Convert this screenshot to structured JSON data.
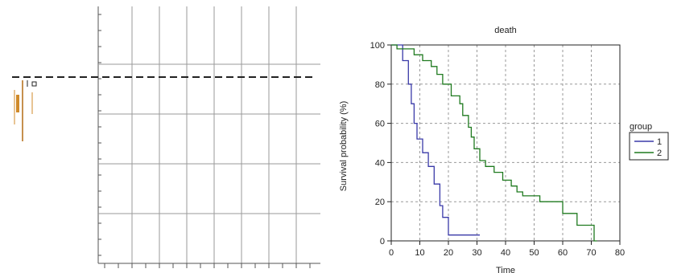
{
  "left_panel": {
    "grid_color": "#9a9a9a",
    "dashed_color": "#222222",
    "fragment_color": "#d08a2a"
  },
  "chart_data": {
    "type": "line",
    "title": "death",
    "xlabel": "Time",
    "ylabel": "Survival probability (%)",
    "xlim": [
      0,
      80
    ],
    "ylim": [
      0,
      100
    ],
    "x_ticks": [
      "0",
      "10",
      "20",
      "30",
      "40",
      "50",
      "60",
      "70",
      "80"
    ],
    "y_ticks": [
      "0",
      "20",
      "40",
      "60",
      "80",
      "100"
    ],
    "grid": true,
    "legend_title": "group",
    "legend_position": "right",
    "series": [
      {
        "name": "1",
        "color": "#3a3aa8",
        "points": [
          [
            0,
            100
          ],
          [
            4,
            100
          ],
          [
            4,
            92
          ],
          [
            6,
            92
          ],
          [
            6,
            80
          ],
          [
            7,
            80
          ],
          [
            7,
            70
          ],
          [
            8,
            70
          ],
          [
            8,
            60
          ],
          [
            9,
            60
          ],
          [
            9,
            52
          ],
          [
            11,
            52
          ],
          [
            11,
            45
          ],
          [
            13,
            45
          ],
          [
            13,
            38
          ],
          [
            15,
            38
          ],
          [
            15,
            29
          ],
          [
            17,
            29
          ],
          [
            17,
            18
          ],
          [
            18,
            18
          ],
          [
            18,
            12
          ],
          [
            20,
            12
          ],
          [
            20,
            3
          ],
          [
            31,
            3
          ]
        ]
      },
      {
        "name": "2",
        "color": "#1f7a1f",
        "points": [
          [
            0,
            100
          ],
          [
            2,
            100
          ],
          [
            2,
            98
          ],
          [
            8,
            98
          ],
          [
            8,
            95
          ],
          [
            11,
            95
          ],
          [
            11,
            92
          ],
          [
            14,
            92
          ],
          [
            14,
            89
          ],
          [
            16,
            89
          ],
          [
            16,
            85
          ],
          [
            18,
            85
          ],
          [
            18,
            80
          ],
          [
            21,
            80
          ],
          [
            21,
            74
          ],
          [
            24,
            74
          ],
          [
            24,
            70
          ],
          [
            25,
            70
          ],
          [
            25,
            64
          ],
          [
            27,
            64
          ],
          [
            27,
            58
          ],
          [
            28,
            58
          ],
          [
            28,
            53
          ],
          [
            29,
            53
          ],
          [
            29,
            47
          ],
          [
            31,
            47
          ],
          [
            31,
            41
          ],
          [
            33,
            41
          ],
          [
            33,
            38
          ],
          [
            36,
            38
          ],
          [
            36,
            35
          ],
          [
            39,
            35
          ],
          [
            39,
            31
          ],
          [
            42,
            31
          ],
          [
            42,
            28
          ],
          [
            44,
            28
          ],
          [
            44,
            25
          ],
          [
            46,
            25
          ],
          [
            46,
            23
          ],
          [
            52,
            23
          ],
          [
            52,
            20
          ],
          [
            60,
            20
          ],
          [
            60,
            14
          ],
          [
            65,
            14
          ],
          [
            65,
            8
          ],
          [
            71,
            8
          ],
          [
            71,
            0
          ],
          [
            72,
            0
          ]
        ]
      }
    ]
  }
}
